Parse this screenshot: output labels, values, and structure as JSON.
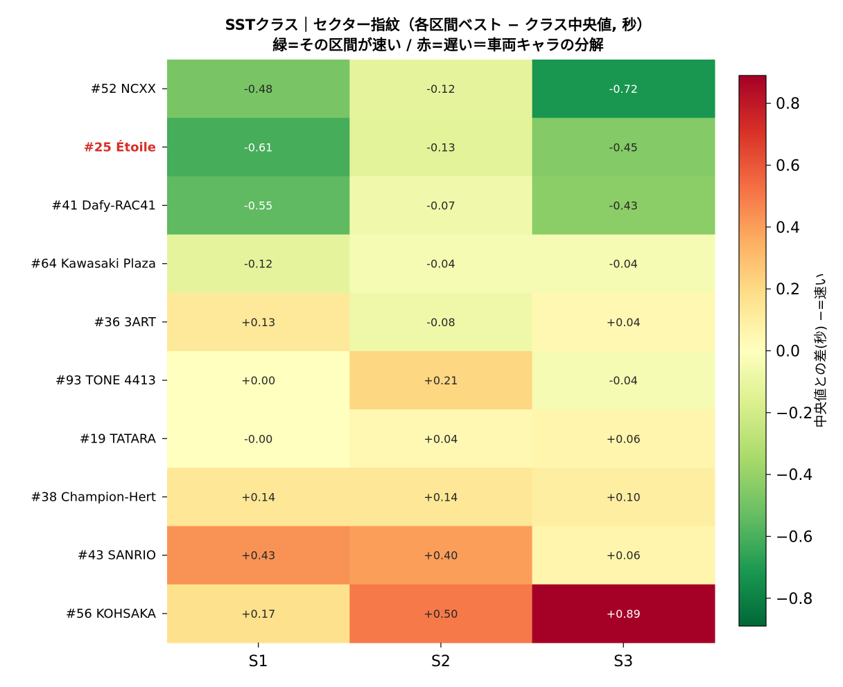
{
  "chart_data": {
    "type": "heatmap",
    "title": "SSTクラス｜セクター指紋（各区間ベスト − クラス中央値, 秒）",
    "subtitle": "緑=その区間が速い / 赤=遅い＝車両キャラの分解",
    "columns": [
      "S1",
      "S2",
      "S3"
    ],
    "rows": [
      "#52 NCXX",
      "#25 Étoile",
      "#41 Dafy-RAC41",
      "#64 Kawasaki Plaza",
      "#36 3ART",
      "#93 TONE 4413",
      "#19 TATARA",
      "#38 Champion-Hert",
      "#43 SANRIO",
      "#56 KOHSAKA"
    ],
    "highlighted_row": "#25 Étoile",
    "highlight_color": "#d73027",
    "values": [
      [
        -0.48,
        -0.12,
        -0.72
      ],
      [
        -0.61,
        -0.13,
        -0.45
      ],
      [
        -0.55,
        -0.07,
        -0.43
      ],
      [
        -0.12,
        -0.04,
        -0.04
      ],
      [
        0.13,
        -0.08,
        0.04
      ],
      [
        0.0,
        0.21,
        -0.04
      ],
      [
        -0.0,
        0.04,
        0.06
      ],
      [
        0.14,
        0.14,
        0.1
      ],
      [
        0.43,
        0.4,
        0.06
      ],
      [
        0.17,
        0.5,
        0.89
      ]
    ],
    "cell_labels": [
      [
        "-0.48",
        "-0.12",
        "-0.72"
      ],
      [
        "-0.61",
        "-0.13",
        "-0.45"
      ],
      [
        "-0.55",
        "-0.07",
        "-0.43"
      ],
      [
        "-0.12",
        "-0.04",
        "-0.04"
      ],
      [
        "+0.13",
        "-0.08",
        "+0.04"
      ],
      [
        "+0.00",
        "+0.21",
        "-0.04"
      ],
      [
        "-0.00",
        "+0.04",
        "+0.06"
      ],
      [
        "+0.14",
        "+0.14",
        "+0.10"
      ],
      [
        "+0.43",
        "+0.40",
        "+0.06"
      ],
      [
        "+0.17",
        "+0.50",
        "+0.89"
      ]
    ],
    "colormap": "RdYlGn_r",
    "vmin": -0.89,
    "vmax": 0.89,
    "colorbar": {
      "label": "中央値との差(秒)  −=速い",
      "ticks": [
        0.8,
        0.6,
        0.4,
        0.2,
        0.0,
        -0.2,
        -0.4,
        -0.6,
        -0.8
      ],
      "tick_labels": [
        "0.8",
        "0.6",
        "0.4",
        "0.2",
        "0.0",
        "−0.2",
        "−0.4",
        "−0.6",
        "−0.8"
      ]
    }
  }
}
